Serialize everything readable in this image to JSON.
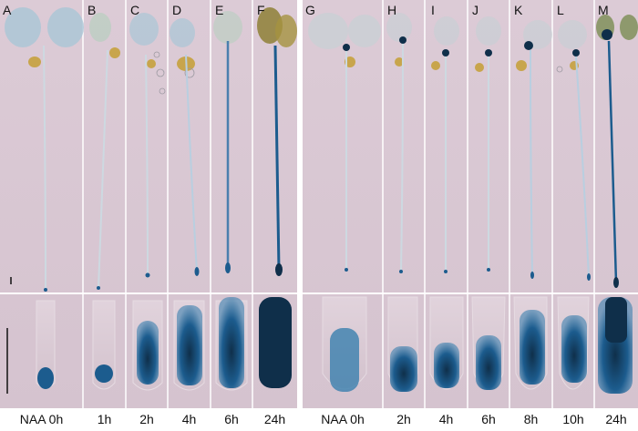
{
  "figure": {
    "left_group": {
      "panels": [
        {
          "letter": "A",
          "caption": "NAA 0h"
        },
        {
          "letter": "B",
          "caption": "1h"
        },
        {
          "letter": "C",
          "caption": "2h"
        },
        {
          "letter": "D",
          "caption": "4h"
        },
        {
          "letter": "E",
          "caption": "6h"
        },
        {
          "letter": "F",
          "caption": "24h"
        }
      ]
    },
    "right_group": {
      "panels": [
        {
          "letter": "G",
          "caption": "NAA 0h"
        },
        {
          "letter": "H",
          "caption": "2h"
        },
        {
          "letter": "I",
          "caption": "4h"
        },
        {
          "letter": "J",
          "caption": "6h"
        },
        {
          "letter": "K",
          "caption": "8h"
        },
        {
          "letter": "L",
          "caption": "10h"
        },
        {
          "letter": "M",
          "caption": "24h"
        }
      ]
    },
    "colors": {
      "background": "#d9c8d5",
      "stain": "#1c5c8e",
      "dark_stain": "#0f2f4a",
      "cotyledon": "#a9c6d6",
      "seed": "#c8a54c"
    }
  }
}
